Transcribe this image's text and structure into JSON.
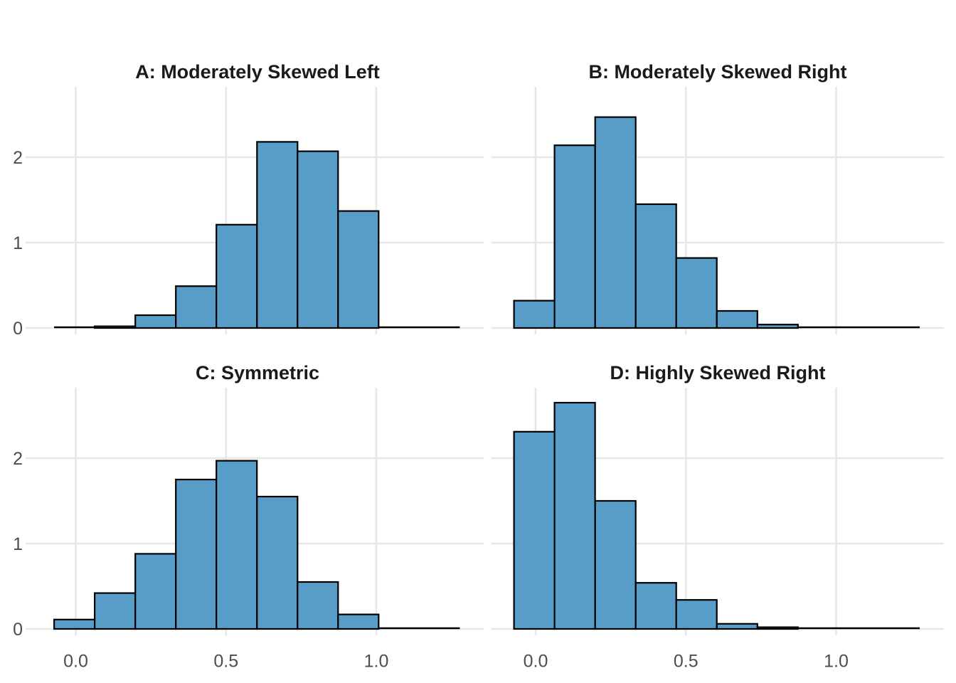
{
  "figure": {
    "background": "#FFFFFF",
    "bar_fill": "#589DC8",
    "bar_stroke": "#000000",
    "gridline_color": "#E7E7E7",
    "axis_text_color": "#4D4D4D",
    "title_color": "#1A1A1A"
  },
  "chart_data": [
    {
      "type": "bar",
      "subtype": "histogram",
      "panel": "A",
      "title": "A: Moderately Skewed Left",
      "bins": {
        "start": -0.072,
        "width": 0.135,
        "densities": [
          0,
          0.02,
          0.15,
          0.49,
          1.21,
          2.18,
          2.07,
          1.37,
          0,
          0
        ]
      },
      "x_ticks": {
        "values": [
          0,
          0.5,
          1
        ],
        "labels": [
          "0.0",
          "0.5",
          "1.0"
        ],
        "labels_shown": false
      },
      "y_ticks": {
        "values": [
          0,
          1,
          2
        ],
        "labels": [
          "0",
          "1",
          "2"
        ],
        "labels_shown": true
      },
      "xlim": [
        -0.15,
        1.36
      ],
      "ylim": [
        0,
        2.83
      ],
      "grid": "major-only",
      "legend": "none"
    },
    {
      "type": "bar",
      "subtype": "histogram",
      "panel": "B",
      "title": "B: Moderately Skewed Right",
      "bins": {
        "start": -0.072,
        "width": 0.135,
        "densities": [
          0.32,
          2.14,
          2.47,
          1.45,
          0.82,
          0.2,
          0.04,
          0,
          0,
          0
        ]
      },
      "x_ticks": {
        "values": [
          0,
          0.5,
          1
        ],
        "labels": [
          "0.0",
          "0.5",
          "1.0"
        ],
        "labels_shown": false
      },
      "y_ticks": {
        "values": [
          0,
          1,
          2
        ],
        "labels": [
          "0",
          "1",
          "2"
        ],
        "labels_shown": false
      },
      "xlim": [
        -0.15,
        1.36
      ],
      "ylim": [
        0,
        2.83
      ],
      "grid": "major-only",
      "legend": "none"
    },
    {
      "type": "bar",
      "subtype": "histogram",
      "panel": "C",
      "title": "C: Symmetric",
      "bins": {
        "start": -0.072,
        "width": 0.135,
        "densities": [
          0.11,
          0.42,
          0.88,
          1.75,
          1.97,
          1.55,
          0.55,
          0.17,
          0,
          0
        ]
      },
      "x_ticks": {
        "values": [
          0,
          0.5,
          1
        ],
        "labels": [
          "0.0",
          "0.5",
          "1.0"
        ],
        "labels_shown": true
      },
      "y_ticks": {
        "values": [
          0,
          1,
          2
        ],
        "labels": [
          "0",
          "1",
          "2"
        ],
        "labels_shown": true
      },
      "xlim": [
        -0.15,
        1.36
      ],
      "ylim": [
        0,
        2.83
      ],
      "grid": "major-only",
      "legend": "none"
    },
    {
      "type": "bar",
      "subtype": "histogram",
      "panel": "D",
      "title": "D: Highly Skewed Right",
      "bins": {
        "start": -0.072,
        "width": 0.135,
        "densities": [
          2.31,
          2.65,
          1.5,
          0.54,
          0.34,
          0.06,
          0.02,
          0,
          0,
          0
        ]
      },
      "x_ticks": {
        "values": [
          0,
          0.5,
          1
        ],
        "labels": [
          "0.0",
          "0.5",
          "1.0"
        ],
        "labels_shown": true
      },
      "y_ticks": {
        "values": [
          0,
          1,
          2
        ],
        "labels": [
          "0",
          "1",
          "2"
        ],
        "labels_shown": false
      },
      "xlim": [
        -0.15,
        1.36
      ],
      "ylim": [
        0,
        2.83
      ],
      "grid": "major-only",
      "legend": "none"
    }
  ]
}
